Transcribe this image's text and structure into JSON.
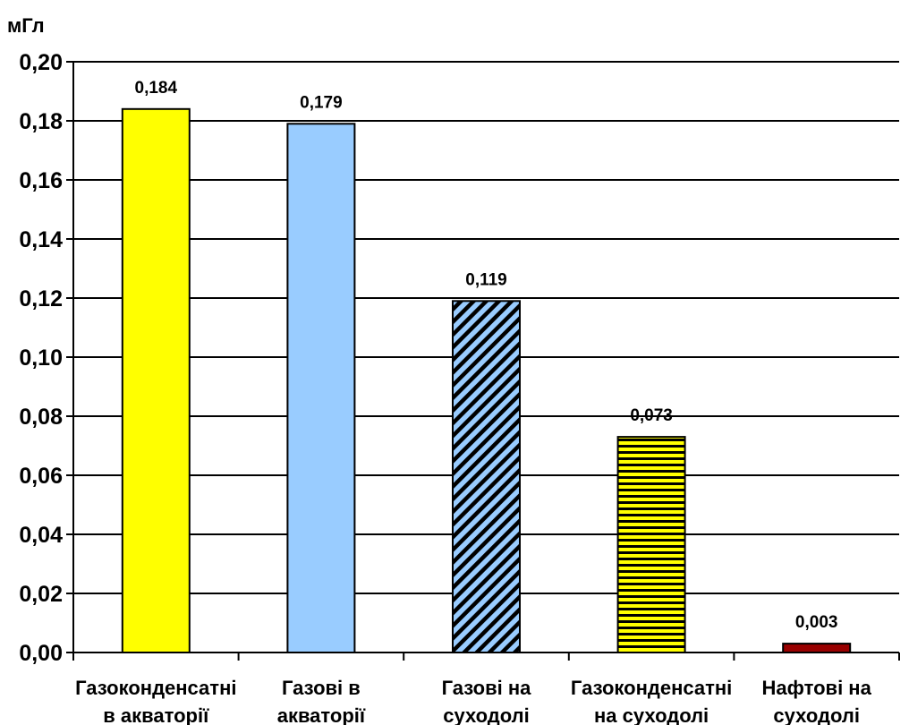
{
  "chart_data": {
    "type": "bar",
    "y_unit": "мГл",
    "categories": [
      [
        "Газоконденсатні",
        "в акваторії"
      ],
      [
        "Газові в",
        "акваторії"
      ],
      [
        "Газові на",
        "суходолі"
      ],
      [
        "Газоконденсатні",
        "на суходолі"
      ],
      [
        "Нафтові на",
        "суходолі"
      ]
    ],
    "values": [
      0.184,
      0.179,
      0.119,
      0.073,
      0.003
    ],
    "value_labels": [
      "0,184",
      "0,179",
      "0,119",
      "0,073",
      "0,003"
    ],
    "ylim": [
      0,
      0.2
    ],
    "yticks": [
      0.0,
      0.02,
      0.04,
      0.06,
      0.08,
      0.1,
      0.12,
      0.14,
      0.16,
      0.18,
      0.2
    ],
    "ytick_labels": [
      "0,00",
      "0,02",
      "0,04",
      "0,06",
      "0,08",
      "0,10",
      "0,12",
      "0,14",
      "0,16",
      "0,18",
      "0,20"
    ],
    "grid": true,
    "legend": "none",
    "bar_styles": [
      {
        "fill": "#ffff00",
        "pattern": "solid"
      },
      {
        "fill": "#99ccff",
        "pattern": "solid"
      },
      {
        "fill": "#99ccff",
        "pattern": "diagonal-stripes",
        "stripe_color": "#000000"
      },
      {
        "fill": "#ffff00",
        "pattern": "horizontal-stripes",
        "stripe_color": "#000000"
      },
      {
        "fill": "#990000",
        "pattern": "solid"
      }
    ]
  }
}
